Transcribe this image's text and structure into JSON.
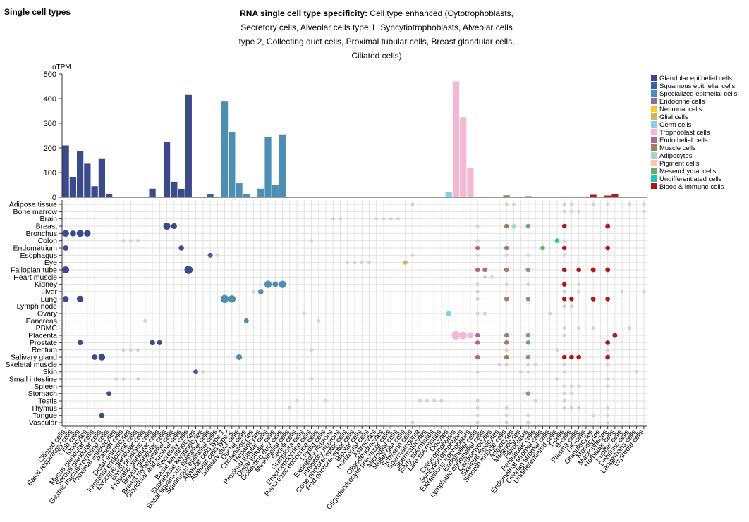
{
  "page_title": "Single cell types",
  "chart_data": {
    "type": "bar",
    "title": "RNA single cell type specificity:",
    "subtitle": "Cell type enhanced (Cytotrophoblasts, Secretory cells, Alveolar cells type 1, Syncytiotrophoblasts, Alveolar cells type 2, Collecting duct cells, Proximal tubular cells, Breast glandular cells, Ciliated cells)",
    "y_label": "nTPM",
    "ylim": [
      0,
      500
    ],
    "yticks": [
      0,
      100,
      200,
      300,
      400,
      500
    ],
    "categories": [
      "Ciliated cells",
      "Basal respiratory cells",
      "Club cells",
      "Ionocytes",
      "Mucus glandular cells",
      "Serous glandular cells",
      "Gastric mucus-secreting cells",
      "Proximal enterocytes",
      "Paneth cells",
      "Distal enterocytes",
      "Intestinal endocrine cells",
      "Exocrine glandular cells",
      "Basal prostatic cells",
      "Prostatic glandular cells",
      "Breast glandular cells",
      "Breast myoepithelial cells",
      "Glandular and luminal cells",
      "Secretory cells",
      "Basal keratinocytes",
      "Suprabasal keratinocytes",
      "Basal squamous epithelial cells",
      "Squamous epithelial cells",
      "Alveolar cells type 1",
      "Alveolar cells type 2",
      "Salivary duct cells",
      "Ductal cells",
      "Cholangiocytes",
      "Hepatocytes",
      "Proximal tubular cells",
      "Distal tubular cells",
      "Collecting duct cells",
      "Mesothelial cells",
      "Sertoli cells",
      "Granulosa cells",
      "Enteroendocrine cells",
      "Pancreatic endocrine cells",
      "Leydig cells",
      "Excitatory neurons",
      "Inhibitory neurons",
      "Cone photoreceptor cells",
      "Rod photoreceptor cells",
      "Bipolar cells",
      "Horizontal cells",
      "Astrocytes",
      "Oligodendrocytes",
      "Oligodendrocyte precursor cells",
      "Microglial cells",
      "Müller glia cells",
      "Schwann cells",
      "Spermatogonia",
      "Spermatocytes",
      "Early spermatids",
      "Late spermatids",
      "Oocytes",
      "Cytotrophoblasts",
      "Syncytiotrophoblasts",
      "Extravillous trophoblasts",
      "Endothelial cells",
      "Lymphatic endothelial cells",
      "Cardiomyocytes",
      "Skeletal myocytes",
      "Smooth muscle cells",
      "Adipocytes",
      "Melanocytes",
      "Fibroblasts",
      "Peritubular cells",
      "Endometrial stromal cells",
      "Ovarian stromal cells",
      "Undifferentiated cells",
      "T-cells",
      "B-cells",
      "Plasma cells",
      "NK-cells",
      "Granulocytes",
      "Monocytes",
      "Macrophages",
      "Hofbauer cells",
      "Kupffer cells",
      "Dendritic cells",
      "Langerhans cells",
      "Erythroid cells"
    ],
    "values": [
      210,
      83,
      187,
      136,
      45,
      158,
      12,
      0,
      0,
      0,
      0,
      0,
      35,
      0,
      225,
      63,
      33,
      415,
      0,
      0,
      12,
      0,
      388,
      265,
      57,
      12,
      0,
      35,
      245,
      50,
      255,
      0,
      0,
      0,
      0,
      0,
      0,
      0,
      0,
      0,
      0,
      0,
      0,
      0,
      0,
      0,
      0,
      2,
      0,
      0,
      0,
      0,
      0,
      23,
      470,
      325,
      120,
      3,
      3,
      0,
      0,
      8,
      0,
      0,
      5,
      0,
      2,
      0,
      0,
      3,
      3,
      3,
      0,
      10,
      0,
      7,
      12,
      0,
      0,
      0,
      0
    ],
    "colors": [
      "#3b4a8b",
      "#3b4a8b",
      "#3b4a8b",
      "#3b4a8b",
      "#3b4a8b",
      "#3b4a8b",
      "#3b4a8b",
      "#3b4a8b",
      "#3b4a8b",
      "#3b4a8b",
      "#3b4a8b",
      "#3b4a8b",
      "#3b4a8b",
      "#3b4a8b",
      "#3b4a8b",
      "#3b4a8b",
      "#3b4a8b",
      "#3b4a8b",
      "#3c5ea3",
      "#3c5ea3",
      "#3c5ea3",
      "#3c5ea3",
      "#4c8fb2",
      "#4c8fb2",
      "#4c8fb2",
      "#4c8fb2",
      "#4c8fb2",
      "#4c8fb2",
      "#4c8fb2",
      "#4c8fb2",
      "#4c8fb2",
      "#4c8fb2",
      "#4c8fb2",
      "#4c8fb2",
      "#8a6aa6",
      "#8a6aa6",
      "#8a6aa6",
      "#f2cc2a",
      "#f2cc2a",
      "#f2cc2a",
      "#f2cc2a",
      "#f2cc2a",
      "#f2cc2a",
      "#d8b15c",
      "#d8b15c",
      "#d8b15c",
      "#d8b15c",
      "#d8b15c",
      "#d8b15c",
      "#87cdf0",
      "#87cdf0",
      "#87cdf0",
      "#87cdf0",
      "#87cdf0",
      "#f4b8d4",
      "#f4b8d4",
      "#f4b8d4",
      "#b3648f",
      "#b3648f",
      "#a47c60",
      "#a47c60",
      "#a47c60",
      "#a3d8c9",
      "#f7c9a9",
      "#63b062",
      "#63b062",
      "#63b062",
      "#63b062",
      "#1ec6b6",
      "#b01818",
      "#b01818",
      "#b01818",
      "#b01818",
      "#b01818",
      "#b01818",
      "#b01818",
      "#b01818",
      "#b01818",
      "#b01818",
      "#b01818",
      "#b01818"
    ],
    "dot_grey": "#d3d3d3",
    "legend": [
      {
        "name": "Glandular epithelial cells",
        "color": "#3b4a8b"
      },
      {
        "name": "Squamous epithelial cells",
        "color": "#3c5ea3"
      },
      {
        "name": "Specialized epithelial cells",
        "color": "#4c8fb2"
      },
      {
        "name": "Endocrine cells",
        "color": "#8a6aa6"
      },
      {
        "name": "Neuronal cells",
        "color": "#f2cc2a"
      },
      {
        "name": "Glial cells",
        "color": "#d8b15c"
      },
      {
        "name": "Germ cells",
        "color": "#87cdf0"
      },
      {
        "name": "Trophoblast cells",
        "color": "#f4b8d4"
      },
      {
        "name": "Endothelial cells",
        "color": "#b3648f"
      },
      {
        "name": "Muscle cells",
        "color": "#a47c60"
      },
      {
        "name": "Adipocytes",
        "color": "#a3d8c9"
      },
      {
        "name": "Pigment cells",
        "color": "#f7c9a9"
      },
      {
        "name": "Mesenchymal cells",
        "color": "#63b062"
      },
      {
        "name": "Undifferentiated cells",
        "color": "#1ec6b6"
      },
      {
        "name": "Blood & immune cells",
        "color": "#b01818"
      }
    ],
    "tissues": [
      {
        "name": "Adipose tissue",
        "cells": [
          48,
          61,
          62,
          69,
          70,
          73,
          75,
          78,
          80
        ],
        "values": [
          1,
          1,
          1,
          1,
          1,
          1,
          1,
          1,
          1
        ]
      },
      {
        "name": "Bone marrow",
        "cells": [
          69,
          70,
          71,
          80
        ],
        "values": [
          1,
          1,
          1,
          1
        ]
      },
      {
        "name": "Brain",
        "cells": [
          37,
          38,
          43,
          44,
          45,
          46
        ],
        "values": [
          1,
          1,
          1,
          1,
          1,
          1
        ]
      },
      {
        "name": "Breast",
        "cells": [
          14,
          15,
          57,
          61,
          62,
          64,
          69,
          75
        ],
        "values": [
          225,
          63,
          1,
          5,
          3,
          5,
          3,
          7
        ]
      },
      {
        "name": "Bronchus",
        "cells": [
          0,
          1,
          2,
          3
        ],
        "values": [
          150,
          83,
          187,
          136
        ]
      },
      {
        "name": "Colon",
        "cells": [
          8,
          9,
          10,
          34,
          57,
          68,
          69
        ],
        "values": [
          1,
          1,
          1,
          1,
          1,
          3,
          1
        ]
      },
      {
        "name": "Endometrium",
        "cells": [
          0,
          16,
          57,
          61,
          66,
          69,
          75
        ],
        "values": [
          40,
          33,
          3,
          5,
          2,
          3,
          5
        ]
      },
      {
        "name": "Esophagus",
        "cells": [
          20,
          21,
          48,
          57,
          61,
          64,
          69
        ],
        "values": [
          12,
          1,
          1,
          1,
          1,
          1,
          1
        ]
      },
      {
        "name": "Eye",
        "cells": [
          39,
          40,
          41,
          42,
          47
        ],
        "values": [
          1,
          1,
          1,
          1,
          2
        ]
      },
      {
        "name": "Fallopian tube",
        "cells": [
          0,
          17,
          57,
          58,
          61,
          64,
          69,
          71,
          73,
          75
        ],
        "values": [
          210,
          415,
          3,
          3,
          5,
          5,
          3,
          3,
          10,
          7
        ]
      },
      {
        "name": "Heart muscle",
        "cells": [
          58,
          59
        ],
        "values": [
          1,
          1
        ]
      },
      {
        "name": "Kidney",
        "cells": [
          28,
          29,
          30,
          57,
          61,
          64,
          69,
          71
        ],
        "values": [
          245,
          50,
          255,
          1,
          1,
          1,
          3,
          1
        ]
      },
      {
        "name": "Liver",
        "cells": [
          26,
          27,
          57,
          69,
          71,
          77,
          80
        ],
        "values": [
          1,
          35,
          1,
          1,
          1,
          1,
          1
        ]
      },
      {
        "name": "Lung",
        "cells": [
          0,
          2,
          22,
          23,
          57,
          61,
          64,
          69,
          70,
          73,
          75
        ],
        "values": [
          100,
          150,
          388,
          265,
          1,
          5,
          5,
          3,
          3,
          10,
          7
        ]
      },
      {
        "name": "Lymph node",
        "cells": [
          69,
          70
        ],
        "values": [
          1,
          1
        ]
      },
      {
        "name": "Ovary",
        "cells": [
          33,
          53,
          57,
          58,
          67
        ],
        "values": [
          1,
          23,
          1,
          1,
          1
        ]
      },
      {
        "name": "Pancreas",
        "cells": [
          11,
          25,
          35
        ],
        "values": [
          1,
          12,
          1
        ]
      },
      {
        "name": "PBMC",
        "cells": [
          69,
          71,
          73,
          78
        ],
        "values": [
          1,
          1,
          1,
          1
        ]
      },
      {
        "name": "Placenta",
        "cells": [
          54,
          55,
          56,
          57,
          61,
          64,
          69,
          76
        ],
        "values": [
          470,
          325,
          120,
          3,
          5,
          5,
          1,
          12
        ]
      },
      {
        "name": "Prostate",
        "cells": [
          2,
          12,
          13,
          57,
          61,
          64,
          75
        ],
        "values": [
          30,
          35,
          20,
          3,
          8,
          5,
          7
        ]
      },
      {
        "name": "Rectum",
        "cells": [
          8,
          9,
          10,
          34,
          61,
          68,
          75
        ],
        "values": [
          1,
          1,
          1,
          1,
          1,
          1,
          1
        ]
      },
      {
        "name": "Salivary gland",
        "cells": [
          4,
          5,
          24,
          57,
          61,
          64,
          69,
          70,
          71,
          75
        ],
        "values": [
          45,
          158,
          57,
          3,
          5,
          5,
          3,
          3,
          3,
          7
        ]
      },
      {
        "name": "Skeletal muscle",
        "cells": [
          60,
          61,
          64,
          65,
          69,
          75
        ],
        "values": [
          1,
          1,
          1,
          1,
          1,
          1
        ]
      },
      {
        "name": "Skin",
        "cells": [
          18,
          19,
          57,
          63,
          64,
          69,
          79
        ],
        "values": [
          10,
          1,
          1,
          1,
          1,
          1,
          1
        ]
      },
      {
        "name": "Small intestine",
        "cells": [
          7,
          8,
          10,
          34,
          68,
          75
        ],
        "values": [
          1,
          1,
          1,
          1,
          1,
          1
        ]
      },
      {
        "name": "Spleen",
        "cells": [
          69,
          70,
          71,
          75
        ],
        "values": [
          1,
          1,
          1,
          1
        ]
      },
      {
        "name": "Stomach",
        "cells": [
          6,
          64,
          69,
          70
        ],
        "values": [
          12,
          5,
          1,
          1
        ]
      },
      {
        "name": "Testis",
        "cells": [
          32,
          36,
          49,
          50,
          51,
          52,
          57,
          65,
          69
        ],
        "values": [
          1,
          1,
          1,
          1,
          1,
          1,
          1,
          1,
          1
        ]
      },
      {
        "name": "Thymus",
        "cells": [
          31,
          57,
          61,
          69,
          70,
          71,
          75
        ],
        "values": [
          1,
          1,
          1,
          1,
          1,
          1,
          1
        ]
      },
      {
        "name": "Tongue",
        "cells": [
          5,
          57,
          61,
          64,
          73,
          75
        ],
        "values": [
          40,
          1,
          1,
          1,
          1,
          1
        ]
      },
      {
        "name": "Vascular",
        "cells": [
          48,
          57,
          61,
          64,
          75
        ],
        "values": [
          1,
          1,
          1,
          1,
          1
        ]
      }
    ]
  }
}
